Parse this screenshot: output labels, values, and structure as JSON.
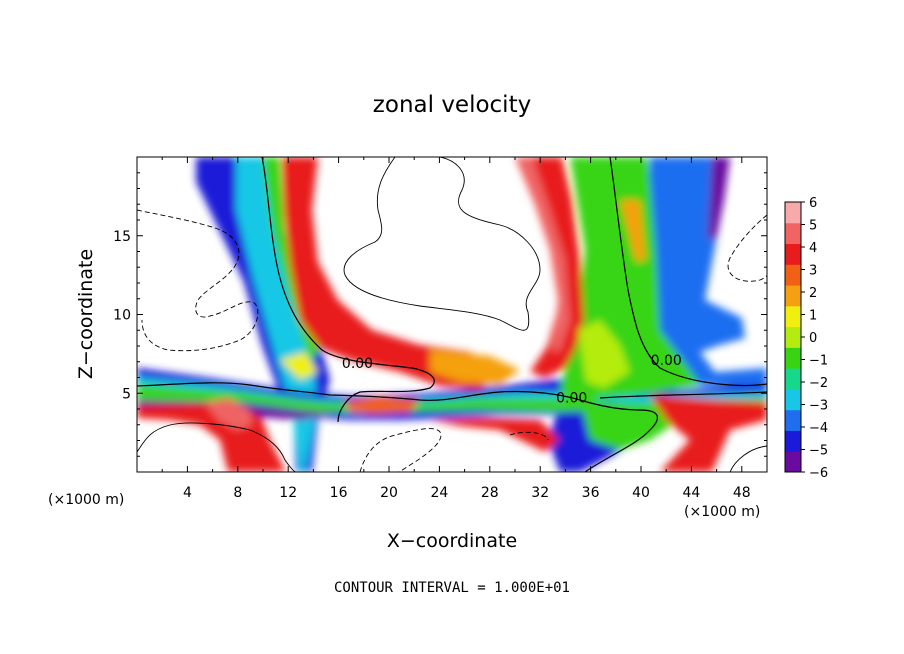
{
  "chart_data": {
    "type": "heatmap",
    "title": "zonal velocity",
    "xlabel": "X−coordinate",
    "ylabel": "Z−coordinate",
    "xlim": [
      0,
      50
    ],
    "ylim": [
      0,
      20
    ],
    "x_ticks": [
      "4",
      "8",
      "12",
      "16",
      "20",
      "24",
      "28",
      "32",
      "36",
      "40",
      "44",
      "48"
    ],
    "y_ticks": [
      "5",
      "10",
      "15"
    ],
    "x_unit_left": "(×1000 m)",
    "x_unit_right": "(×1000 m)",
    "footer": "CONTOUR INTERVAL = 1.000E+01",
    "colorbar": {
      "labels": [
        "6",
        "5",
        "4",
        "3",
        "2",
        "1",
        "0",
        "−1",
        "−2",
        "−3",
        "−4",
        "−5",
        "−6"
      ],
      "min": -6,
      "max": 6
    },
    "contour_labels": [
      {
        "text": "0.00",
        "x": 17.5,
        "y": 6.6
      },
      {
        "text": "0.00",
        "x": 34.5,
        "y": 4.4
      },
      {
        "text": "0.00",
        "x": 42.0,
        "y": 6.8
      }
    ],
    "colors": {
      "scale": [
        "#6b0aa0",
        "#1a1ad8",
        "#1f6ef0",
        "#16c8e6",
        "#16d88c",
        "#38d414",
        "#b4ec10",
        "#f0f010",
        "#f5a010",
        "#f06016",
        "#e81c1c",
        "#f06464",
        "#f8aaaa"
      ]
    }
  }
}
